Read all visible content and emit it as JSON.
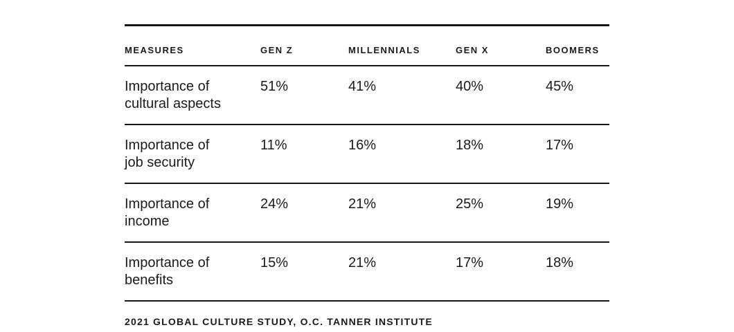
{
  "table": {
    "columns": [
      "MEASURES",
      "GEN Z",
      "MILLENNIALS",
      "GEN X",
      "BOOMERS"
    ],
    "rows": [
      {
        "measure": "Importance of cultural aspects",
        "measure_lines": [
          "Importance of",
          "cultural aspects"
        ],
        "values": [
          "51%",
          "41%",
          "40%",
          "45%"
        ]
      },
      {
        "measure": "Importance of job security",
        "measure_lines": [
          "Importance of",
          "job security"
        ],
        "values": [
          "11%",
          "16%",
          "18%",
          "17%"
        ]
      },
      {
        "measure": "Importance of income",
        "measure_lines": [
          "Importance of",
          "income"
        ],
        "values": [
          "24%",
          "21%",
          "25%",
          "19%"
        ]
      },
      {
        "measure": "Importance of benefits",
        "measure_lines": [
          "Importance of",
          "benefits"
        ],
        "values": [
          "15%",
          "21%",
          "17%",
          "18%"
        ]
      }
    ]
  },
  "footer": {
    "source_text": "2021 GLOBAL CULTURE STUDY, O.C. TANNER INSTITUTE"
  },
  "colors": {
    "text": "#1a1a1a",
    "line": "#161616",
    "background": "#ffffff"
  },
  "chart_data": {
    "type": "table",
    "title": "",
    "columns": [
      "MEASURES",
      "GEN Z",
      "MILLENNIALS",
      "GEN X",
      "BOOMERS"
    ],
    "categories": [
      "Importance of cultural aspects",
      "Importance of job security",
      "Importance of income",
      "Importance of benefits"
    ],
    "series": [
      {
        "name": "GEN Z",
        "values": [
          51,
          11,
          24,
          15
        ]
      },
      {
        "name": "MILLENNIALS",
        "values": [
          41,
          16,
          21,
          21
        ]
      },
      {
        "name": "GEN X",
        "values": [
          40,
          18,
          25,
          17
        ]
      },
      {
        "name": "BOOMERS",
        "values": [
          45,
          17,
          19,
          18
        ]
      }
    ],
    "value_unit": "%",
    "source": "2021 GLOBAL CULTURE STUDY, O.C. TANNER INSTITUTE"
  }
}
